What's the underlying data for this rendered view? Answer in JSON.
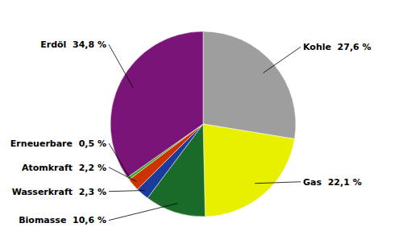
{
  "chart_data": {
    "type": "pie",
    "values": [
      27.6,
      22.1,
      10.6,
      2.3,
      2.2,
      0.5,
      34.8
    ],
    "value_labels": [
      "Kohle  27,6 %",
      "Gas  22,1 %",
      "Biomasse  10,6 %",
      "Wasserkraft  2,3 %",
      "Atomkraft  2,2 %",
      "Erneuerbare  0,5 %",
      "Erdöl  34,8 %"
    ],
    "colors": [
      "#9e9e9e",
      "#e8f000",
      "#1a6b2a",
      "#1a3a9e",
      "#cc3300",
      "#44aa22",
      "#7b1478"
    ],
    "data_labels": true
  }
}
